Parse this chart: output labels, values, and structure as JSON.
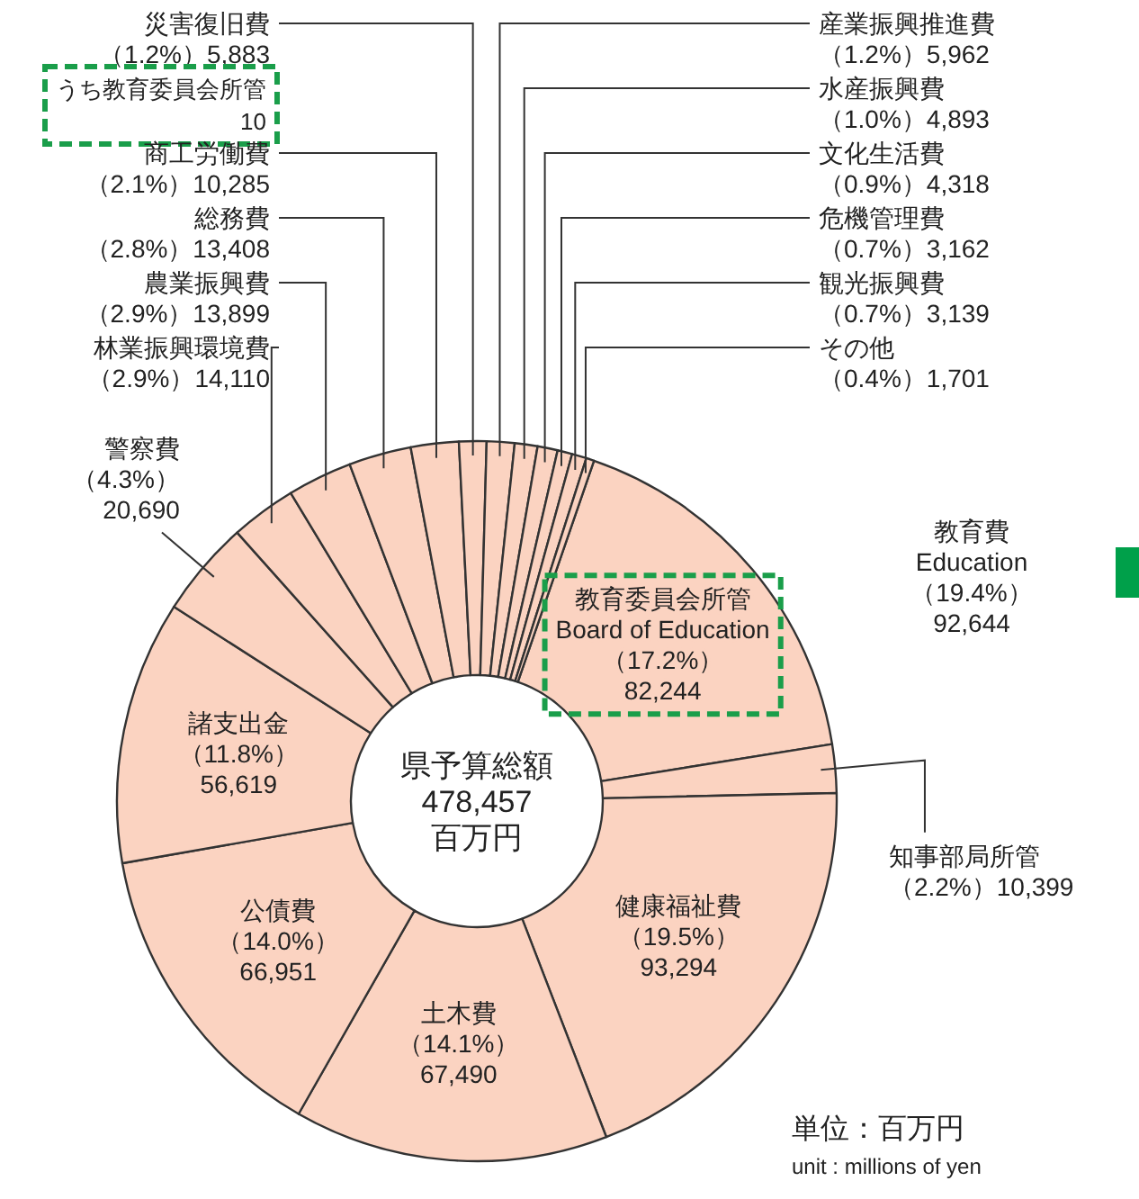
{
  "chart_data": {
    "type": "donut",
    "title": "県予算総額\n478,457\n百万円",
    "categories": [
      "教育委員会所管\nBoard of Education",
      "知事部局所管",
      "健康福祉費",
      "土木費",
      "公債費",
      "諸支出金",
      "警察費",
      "林業振興環境費",
      "農業振興費",
      "総務費",
      "商工労働費",
      "災害復旧費",
      "産業振興推進費",
      "水産振興費",
      "文化生活費",
      "危機管理費",
      "観光振興費",
      "その他"
    ],
    "values": [
      82244,
      10399,
      93294,
      67490,
      66951,
      56619,
      20690,
      14110,
      13899,
      13408,
      10285,
      5883,
      5962,
      4893,
      4318,
      3162,
      3139,
      1701
    ],
    "value_labels": [
      "（17.2%）\n82,244",
      "（2.2%）10,399",
      "（19.5%）\n93,294",
      "（14.1%）\n67,490",
      "（14.0%）\n66,951",
      "（11.8%）\n56,619",
      "（4.3%）\n20,690",
      "（2.9%）14,110",
      "（2.9%）13,899",
      "（2.8%）13,408",
      "（2.1%）10,285",
      "（1.2%）5,883",
      "（1.2%）5,962",
      "（1.0%）4,893",
      "（0.9%）4,318",
      "（0.7%）3,162",
      "（0.7%）3,139",
      "（0.4%）1,701"
    ],
    "colors": [
      "#fbd3c1",
      "#fbd3c1",
      "#fbd3c1",
      "#fbd3c1",
      "#fbd3c1",
      "#fbd3c1",
      "#fbd3c1",
      "#fbd3c1",
      "#fbd3c1",
      "#fbd3c1",
      "#fbd3c1",
      "#fbd3c1",
      "#fbd3c1",
      "#fbd3c1",
      "#fbd3c1",
      "#fbd3c1",
      "#fbd3c1",
      "#fbd3c1"
    ],
    "annotations": [
      "教育費\nEducation\n（19.4%）\n92,644",
      "うち教育委員会所管\n10",
      "単位：百万円",
      "unit : millions of yen"
    ]
  }
}
